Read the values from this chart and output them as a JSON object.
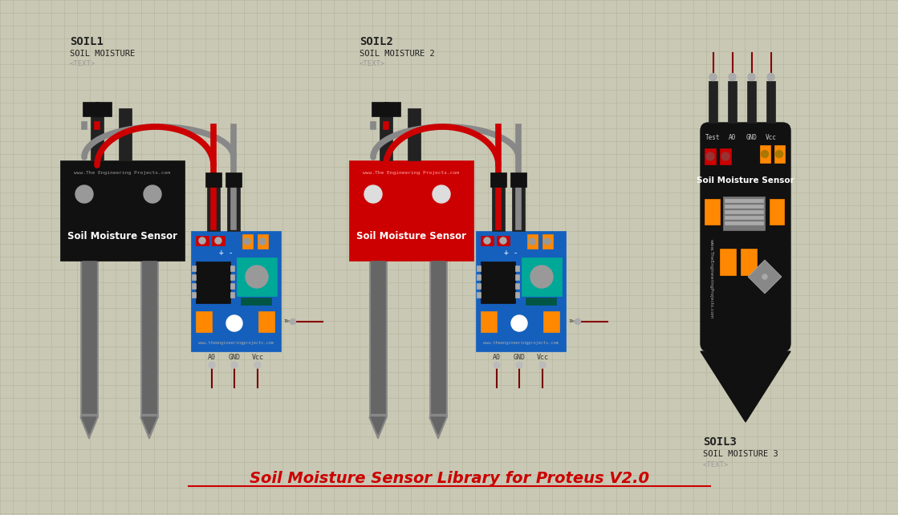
{
  "bg_color": "#c8c8b4",
  "grid_color": "#b8b8a0",
  "title": "Soil Moisture Sensor Library for Proteus V2.0",
  "title_color": "#cc0000",
  "title_fontsize": 14,
  "soil1_label": "SOIL1",
  "soil1_sublabel": "SOIL MOISTURE",
  "soil1_subtext": "<TEXT>",
  "soil2_label": "SOIL2",
  "soil2_sublabel": "SOIL MOISTURE 2",
  "soil2_subtext": "<TEXT>",
  "soil3_label": "SOIL3",
  "soil3_sublabel": "SOIL MOISTURE 3",
  "soil3_subtext": "<TEXT>",
  "blue_board_color": "#1560bd",
  "teal_color": "#00a898",
  "orange_color": "#ff8800",
  "black_color": "#111111",
  "red_color": "#cc0000",
  "dark_red_color": "#880000",
  "gray_color": "#888888",
  "light_gray": "#aaaaaa",
  "white": "#ffffff"
}
